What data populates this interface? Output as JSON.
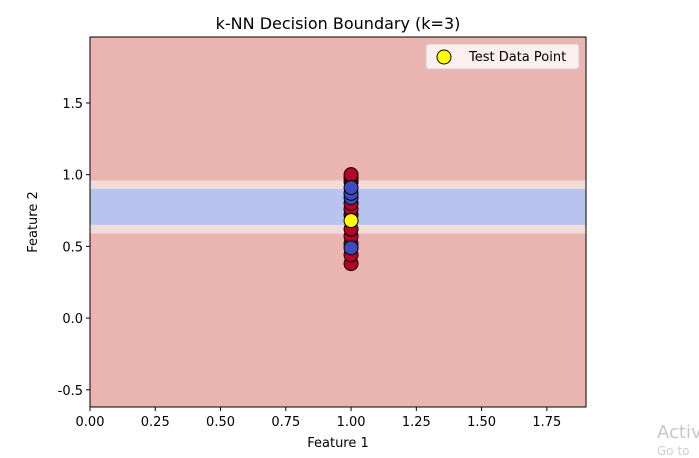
{
  "chart_data": {
    "type": "scatter",
    "title": "k-NN Decision Boundary (k=3)",
    "xlabel": "Feature 1",
    "ylabel": "Feature 2",
    "xlim": [
      0.0,
      1.9
    ],
    "ylim": [
      -0.62,
      1.96
    ],
    "x_ticks": [
      "0.00",
      "0.25",
      "0.50",
      "0.75",
      "1.00",
      "1.25",
      "1.50",
      "1.75"
    ],
    "x_tick_values": [
      0.0,
      0.25,
      0.5,
      0.75,
      1.0,
      1.25,
      1.5,
      1.75
    ],
    "y_ticks": [
      "-0.5",
      "0.0",
      "0.5",
      "1.0",
      "1.5"
    ],
    "y_tick_values": [
      -0.5,
      0.0,
      0.5,
      1.0,
      1.5
    ],
    "grid": false,
    "legend_position": "top-right",
    "legend": [
      {
        "label": "Test Data Point",
        "color": "#ffff00"
      }
    ],
    "background_regions": [
      {
        "class": "red",
        "y_from": -0.62,
        "y_to": 0.59,
        "color": "#eab4b0"
      },
      {
        "class": "transition-low",
        "y_from": 0.59,
        "y_to": 0.65,
        "color": "#f2dcd8"
      },
      {
        "class": "blue",
        "y_from": 0.65,
        "y_to": 0.9,
        "color": "#b7c4f0"
      },
      {
        "class": "transition-high",
        "y_from": 0.9,
        "y_to": 0.96,
        "color": "#f2dcd8"
      },
      {
        "class": "red",
        "y_from": 0.96,
        "y_to": 1.96,
        "color": "#eab4b0"
      }
    ],
    "colors": {
      "red_class": "#b40426",
      "blue_class": "#3b4cc0",
      "test_point": "#ffff00"
    },
    "series": [
      {
        "class": "red",
        "points": [
          {
            "x": 1.0,
            "y": 0.38
          },
          {
            "x": 1.0,
            "y": 0.44
          },
          {
            "x": 1.0,
            "y": 0.52
          },
          {
            "x": 1.0,
            "y": 0.57
          },
          {
            "x": 1.0,
            "y": 0.62
          },
          {
            "x": 1.0,
            "y": 0.72
          },
          {
            "x": 1.0,
            "y": 0.76
          },
          {
            "x": 1.0,
            "y": 0.8
          },
          {
            "x": 1.0,
            "y": 0.95
          },
          {
            "x": 1.0,
            "y": 0.98
          },
          {
            "x": 1.0,
            "y": 1.0
          }
        ]
      },
      {
        "class": "blue",
        "points": [
          {
            "x": 1.0,
            "y": 0.49
          },
          {
            "x": 1.0,
            "y": 0.84
          },
          {
            "x": 1.0,
            "y": 0.87
          },
          {
            "x": 1.0,
            "y": 0.91
          }
        ]
      },
      {
        "name": "Test Data Point",
        "points": [
          {
            "x": 1.0,
            "y": 0.68
          }
        ]
      }
    ]
  },
  "watermark": {
    "line1": "Activ",
    "line2": "Go to"
  }
}
